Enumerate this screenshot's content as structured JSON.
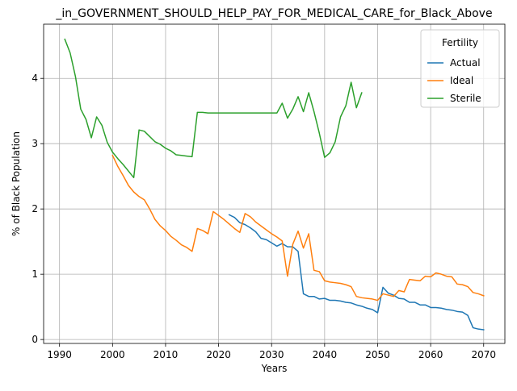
{
  "chart_data": {
    "type": "line",
    "title": "_in_GOVERNMENT_SHOULD_HELP_PAY_FOR_MEDICAL_CARE_for_Black_Above",
    "xlabel": "Years",
    "ylabel": "% of Black Population",
    "xlim": [
      1987,
      2074
    ],
    "ylim": [
      -0.06,
      4.83
    ],
    "x_ticks": [
      1990,
      2000,
      2010,
      2020,
      2030,
      2040,
      2050,
      2060,
      2070
    ],
    "y_ticks": [
      0,
      1,
      2,
      3,
      4
    ],
    "grid": true,
    "legend": {
      "title": "Fertility",
      "placement": "top-right"
    },
    "series": [
      {
        "name": "Actual",
        "color": "#1f77b4",
        "points": [
          [
            2022,
            1.91
          ],
          [
            2023,
            1.87
          ],
          [
            2024,
            1.79
          ],
          [
            2025,
            1.76
          ],
          [
            2026,
            1.71
          ],
          [
            2027,
            1.65
          ],
          [
            2028,
            1.55
          ],
          [
            2029,
            1.53
          ],
          [
            2030,
            1.48
          ],
          [
            2031,
            1.43
          ],
          [
            2032,
            1.47
          ],
          [
            2033,
            1.42
          ],
          [
            2034,
            1.42
          ],
          [
            2035,
            1.35
          ],
          [
            2036,
            0.7
          ],
          [
            2037,
            0.66
          ],
          [
            2038,
            0.66
          ],
          [
            2039,
            0.62
          ],
          [
            2040,
            0.63
          ],
          [
            2041,
            0.6
          ],
          [
            2042,
            0.6
          ],
          [
            2043,
            0.59
          ],
          [
            2044,
            0.57
          ],
          [
            2045,
            0.56
          ],
          [
            2046,
            0.53
          ],
          [
            2047,
            0.51
          ],
          [
            2048,
            0.48
          ],
          [
            2049,
            0.46
          ],
          [
            2050,
            0.41
          ],
          [
            2051,
            0.8
          ],
          [
            2052,
            0.71
          ],
          [
            2053,
            0.68
          ],
          [
            2054,
            0.63
          ],
          [
            2055,
            0.62
          ],
          [
            2056,
            0.57
          ],
          [
            2057,
            0.57
          ],
          [
            2058,
            0.53
          ],
          [
            2059,
            0.53
          ],
          [
            2060,
            0.49
          ],
          [
            2061,
            0.49
          ],
          [
            2062,
            0.48
          ],
          [
            2063,
            0.46
          ],
          [
            2064,
            0.45
          ],
          [
            2065,
            0.43
          ],
          [
            2066,
            0.42
          ],
          [
            2067,
            0.37
          ],
          [
            2068,
            0.18
          ],
          [
            2069,
            0.16
          ],
          [
            2070,
            0.15
          ]
        ]
      },
      {
        "name": "Ideal",
        "color": "#ff7f0e",
        "points": [
          [
            2000,
            2.82
          ],
          [
            2001,
            2.65
          ],
          [
            2002,
            2.51
          ],
          [
            2003,
            2.36
          ],
          [
            2004,
            2.26
          ],
          [
            2005,
            2.19
          ],
          [
            2006,
            2.14
          ],
          [
            2007,
            2.0
          ],
          [
            2008,
            1.84
          ],
          [
            2009,
            1.74
          ],
          [
            2010,
            1.67
          ],
          [
            2011,
            1.58
          ],
          [
            2012,
            1.52
          ],
          [
            2013,
            1.45
          ],
          [
            2014,
            1.41
          ],
          [
            2015,
            1.35
          ],
          [
            2016,
            1.7
          ],
          [
            2017,
            1.67
          ],
          [
            2018,
            1.62
          ],
          [
            2019,
            1.96
          ],
          [
            2020,
            1.9
          ],
          [
            2021,
            1.84
          ],
          [
            2022,
            1.77
          ],
          [
            2023,
            1.7
          ],
          [
            2024,
            1.64
          ],
          [
            2025,
            1.93
          ],
          [
            2026,
            1.88
          ],
          [
            2027,
            1.8
          ],
          [
            2028,
            1.74
          ],
          [
            2029,
            1.68
          ],
          [
            2030,
            1.62
          ],
          [
            2031,
            1.57
          ],
          [
            2032,
            1.51
          ],
          [
            2033,
            0.97
          ],
          [
            2034,
            1.46
          ],
          [
            2035,
            1.66
          ],
          [
            2036,
            1.4
          ],
          [
            2037,
            1.62
          ],
          [
            2038,
            1.06
          ],
          [
            2039,
            1.04
          ],
          [
            2040,
            0.9
          ],
          [
            2041,
            0.88
          ],
          [
            2042,
            0.87
          ],
          [
            2043,
            0.86
          ],
          [
            2044,
            0.84
          ],
          [
            2045,
            0.81
          ],
          [
            2046,
            0.66
          ],
          [
            2047,
            0.64
          ],
          [
            2048,
            0.63
          ],
          [
            2049,
            0.62
          ],
          [
            2050,
            0.6
          ],
          [
            2051,
            0.7
          ],
          [
            2052,
            0.68
          ],
          [
            2053,
            0.66
          ],
          [
            2054,
            0.75
          ],
          [
            2055,
            0.73
          ],
          [
            2056,
            0.92
          ],
          [
            2057,
            0.91
          ],
          [
            2058,
            0.9
          ],
          [
            2059,
            0.97
          ],
          [
            2060,
            0.96
          ],
          [
            2061,
            1.02
          ],
          [
            2062,
            1.0
          ],
          [
            2063,
            0.97
          ],
          [
            2064,
            0.96
          ],
          [
            2065,
            0.85
          ],
          [
            2066,
            0.84
          ],
          [
            2067,
            0.81
          ],
          [
            2068,
            0.72
          ],
          [
            2069,
            0.7
          ],
          [
            2070,
            0.67
          ]
        ]
      },
      {
        "name": "Sterile",
        "color": "#2ca02c",
        "points": [
          [
            1991,
            4.6
          ],
          [
            1992,
            4.39
          ],
          [
            1993,
            4.03
          ],
          [
            1994,
            3.53
          ],
          [
            1995,
            3.37
          ],
          [
            1996,
            3.09
          ],
          [
            1997,
            3.41
          ],
          [
            1998,
            3.28
          ],
          [
            1999,
            3.02
          ],
          [
            2000,
            2.87
          ],
          [
            2001,
            2.77
          ],
          [
            2002,
            2.68
          ],
          [
            2003,
            2.58
          ],
          [
            2004,
            2.48
          ],
          [
            2005,
            3.21
          ],
          [
            2006,
            3.19
          ],
          [
            2007,
            3.11
          ],
          [
            2008,
            3.03
          ],
          [
            2009,
            2.99
          ],
          [
            2010,
            2.93
          ],
          [
            2011,
            2.89
          ],
          [
            2012,
            2.83
          ],
          [
            2013,
            2.82
          ],
          [
            2014,
            2.81
          ],
          [
            2015,
            2.8
          ],
          [
            2016,
            3.48
          ],
          [
            2017,
            3.48
          ],
          [
            2018,
            3.47
          ],
          [
            2019,
            3.47
          ],
          [
            2020,
            3.47
          ],
          [
            2021,
            3.47
          ],
          [
            2022,
            3.47
          ],
          [
            2023,
            3.47
          ],
          [
            2024,
            3.47
          ],
          [
            2025,
            3.47
          ],
          [
            2026,
            3.47
          ],
          [
            2027,
            3.47
          ],
          [
            2028,
            3.47
          ],
          [
            2029,
            3.47
          ],
          [
            2030,
            3.47
          ],
          [
            2031,
            3.47
          ],
          [
            2032,
            3.62
          ],
          [
            2033,
            3.39
          ],
          [
            2034,
            3.53
          ],
          [
            2035,
            3.72
          ],
          [
            2036,
            3.49
          ],
          [
            2037,
            3.78
          ],
          [
            2038,
            3.49
          ],
          [
            2039,
            3.16
          ],
          [
            2040,
            2.79
          ],
          [
            2041,
            2.86
          ],
          [
            2042,
            3.03
          ],
          [
            2043,
            3.41
          ],
          [
            2044,
            3.58
          ],
          [
            2045,
            3.94
          ],
          [
            2046,
            3.55
          ],
          [
            2047,
            3.78
          ]
        ]
      }
    ]
  }
}
